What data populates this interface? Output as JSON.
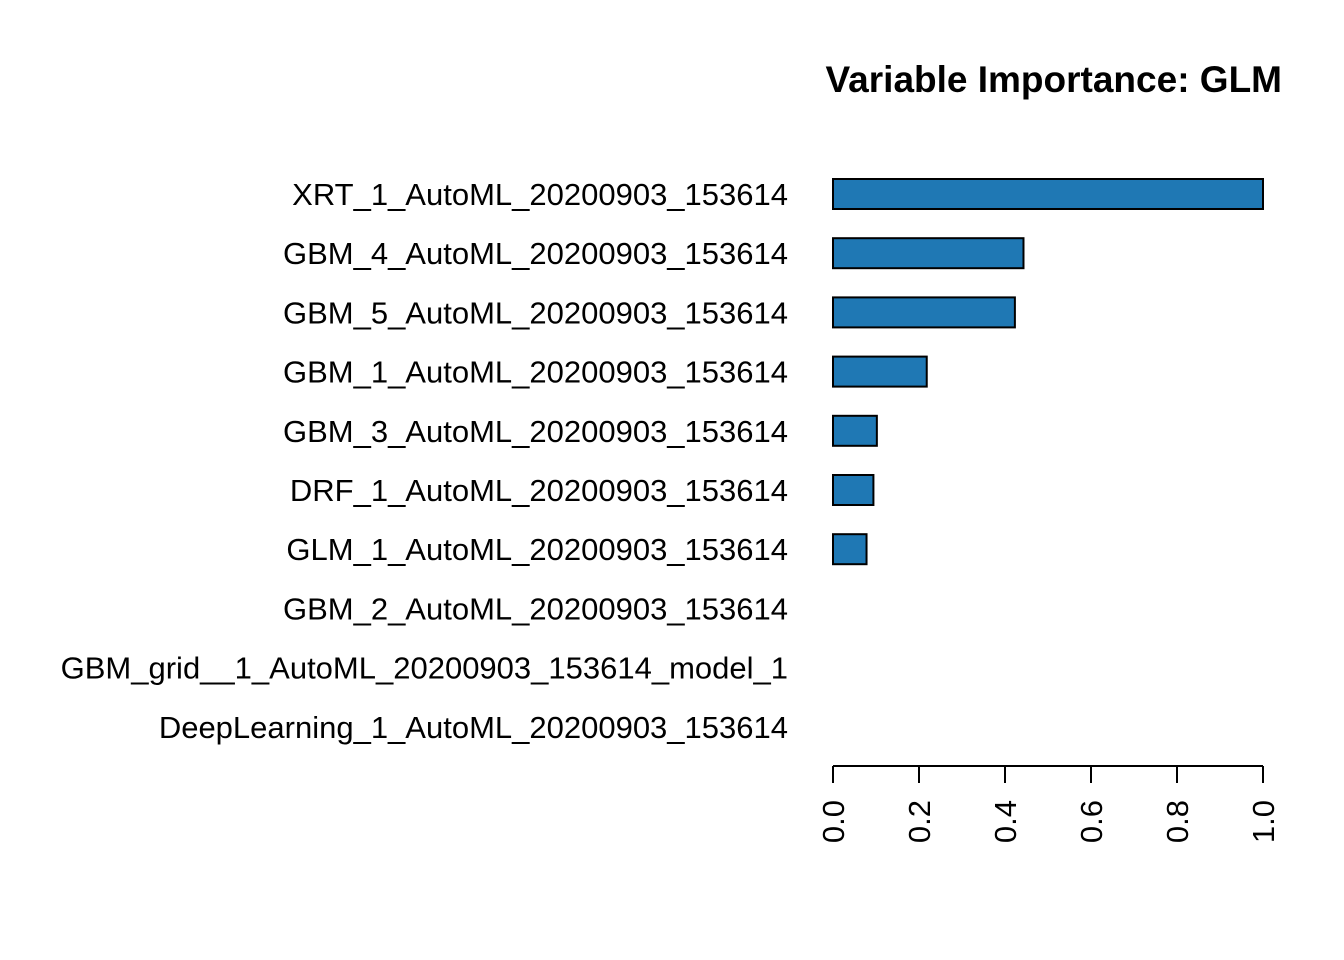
{
  "chart_data": {
    "type": "bar",
    "orientation": "horizontal",
    "title": "Variable Importance: GLM",
    "xlabel": "",
    "ylabel": "",
    "categories": [
      "XRT_1_AutoML_20200903_153614",
      "GBM_4_AutoML_20200903_153614",
      "GBM_5_AutoML_20200903_153614",
      "GBM_1_AutoML_20200903_153614",
      "GBM_3_AutoML_20200903_153614",
      "DRF_1_AutoML_20200903_153614",
      "GLM_1_AutoML_20200903_153614",
      "GBM_2_AutoML_20200903_153614",
      "GBM_grid__1_AutoML_20200903_153614_model_1",
      "DeepLearning_1_AutoML_20200903_153614"
    ],
    "values": [
      1.0,
      0.443,
      0.423,
      0.218,
      0.102,
      0.094,
      0.078,
      0.0,
      0.0,
      0.0
    ],
    "xlim": [
      0,
      1
    ],
    "ticks": [
      0,
      0.2,
      0.4,
      0.6,
      0.8,
      1.0
    ],
    "tick_labels": [
      "0.0",
      "0.2",
      "0.4",
      "0.6",
      "0.8",
      "1.0"
    ],
    "tick_label_rotation": "vertical",
    "bar_color": "#1F78B4",
    "grid": false,
    "legend": "none"
  }
}
